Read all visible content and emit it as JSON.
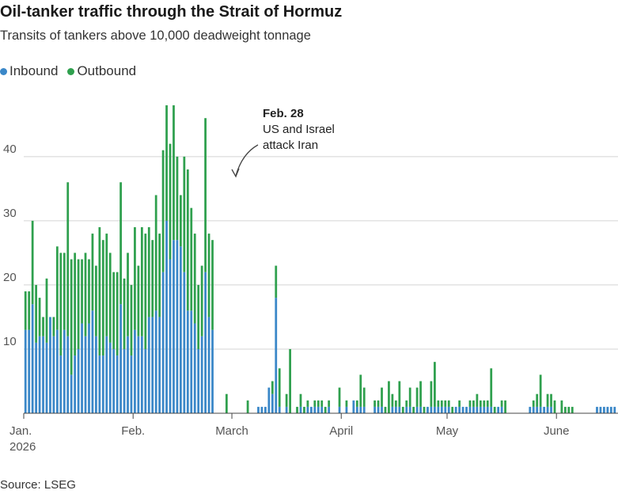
{
  "title": "Oil-tanker traffic through the Strait of Hormuz",
  "subtitle": "Transits of tankers above 10,000 deadweight tonnage",
  "source": "Source: LSEG",
  "legend": [
    {
      "label": "Inbound",
      "color": "#3a87c8"
    },
    {
      "label": "Outbound",
      "color": "#2fa04e"
    }
  ],
  "annotation": {
    "date": "Feb. 28",
    "line1": "US and Israel",
    "line2": "attack Iran"
  },
  "chart_data": {
    "type": "bar",
    "stacked": true,
    "ylim": [
      0,
      48
    ],
    "yticks": [
      10,
      20,
      30,
      40
    ],
    "grid": true,
    "legend_position": "top-left",
    "xlabels": [
      {
        "label": "Jan.",
        "sub": "2026",
        "day": 0
      },
      {
        "label": "Feb.",
        "day": 31
      },
      {
        "label": "March",
        "day": 59
      },
      {
        "label": "April",
        "day": 90
      },
      {
        "label": "May",
        "day": 120
      },
      {
        "label": "June",
        "day": 151
      }
    ],
    "start_date": "2026-01-01",
    "series": [
      {
        "name": "Inbound",
        "color": "#3a87c8",
        "values": [
          13,
          13,
          17,
          11,
          12,
          12,
          11,
          15,
          12,
          13,
          9,
          13,
          12,
          6,
          9,
          10,
          14,
          12,
          14,
          16,
          12,
          9,
          9,
          12,
          11,
          10,
          9,
          17,
          10,
          12,
          9,
          13,
          12,
          12,
          10,
          15,
          15,
          16,
          15,
          22,
          30,
          24,
          27,
          27,
          26,
          22,
          16,
          16,
          14,
          10,
          12,
          22,
          15,
          13,
          0,
          0,
          0,
          0,
          0,
          0,
          0,
          0,
          0,
          0,
          0,
          0,
          1,
          1,
          1,
          4,
          3,
          18,
          1,
          0,
          1,
          0,
          0,
          0,
          1,
          0,
          1,
          1,
          1,
          1,
          1,
          0,
          1,
          0,
          0,
          1,
          0,
          1,
          0,
          2,
          1,
          1,
          1,
          0,
          0,
          1,
          1,
          1,
          0,
          0,
          1,
          1,
          1,
          0,
          1,
          1,
          0,
          1,
          1,
          0,
          1,
          1,
          1,
          1,
          1,
          1,
          1,
          0,
          1,
          1,
          1,
          1,
          1,
          1,
          1,
          1,
          1,
          1,
          1,
          0,
          1,
          1,
          0,
          0,
          0,
          0,
          0,
          0,
          0,
          1,
          1,
          1,
          1,
          1,
          1,
          1,
          0,
          0,
          0,
          0,
          0,
          0,
          0,
          0,
          0,
          0,
          0,
          0,
          1,
          1,
          1,
          1,
          1,
          1
        ]
      },
      {
        "name": "Outbound",
        "color": "#2fa04e",
        "values": [
          6,
          6,
          13,
          9,
          6,
          3,
          10,
          0,
          3,
          13,
          16,
          12,
          24,
          18,
          16,
          14,
          10,
          13,
          10,
          12,
          11,
          20,
          18,
          16,
          14,
          12,
          13,
          19,
          11,
          13,
          11,
          16,
          11,
          17,
          18,
          14,
          12,
          18,
          13,
          19,
          18,
          18,
          21,
          13,
          8,
          18,
          22,
          16,
          14,
          10,
          11,
          24,
          13,
          14,
          0,
          0,
          0,
          3,
          0,
          0,
          0,
          0,
          0,
          2,
          0,
          0,
          0,
          0,
          0,
          0,
          2,
          5,
          6,
          0,
          2,
          10,
          0,
          1,
          2,
          1,
          1,
          0,
          1,
          1,
          1,
          1,
          1,
          0,
          0,
          3,
          0,
          1,
          0,
          0,
          1,
          5,
          3,
          0,
          0,
          1,
          1,
          3,
          1,
          5,
          2,
          1,
          4,
          1,
          1,
          3,
          1,
          3,
          4,
          1,
          0,
          4,
          7,
          1,
          1,
          1,
          1,
          1,
          0,
          1,
          0,
          0,
          1,
          1,
          2,
          1,
          1,
          1,
          6,
          1,
          0,
          1,
          2,
          0,
          0,
          0,
          0,
          0,
          0,
          0,
          1,
          2,
          5,
          0,
          2,
          2,
          2,
          0,
          2,
          1,
          1,
          1,
          0,
          0,
          0,
          0,
          0,
          0,
          0,
          0,
          0,
          0,
          0,
          0,
          1
        ]
      }
    ]
  }
}
